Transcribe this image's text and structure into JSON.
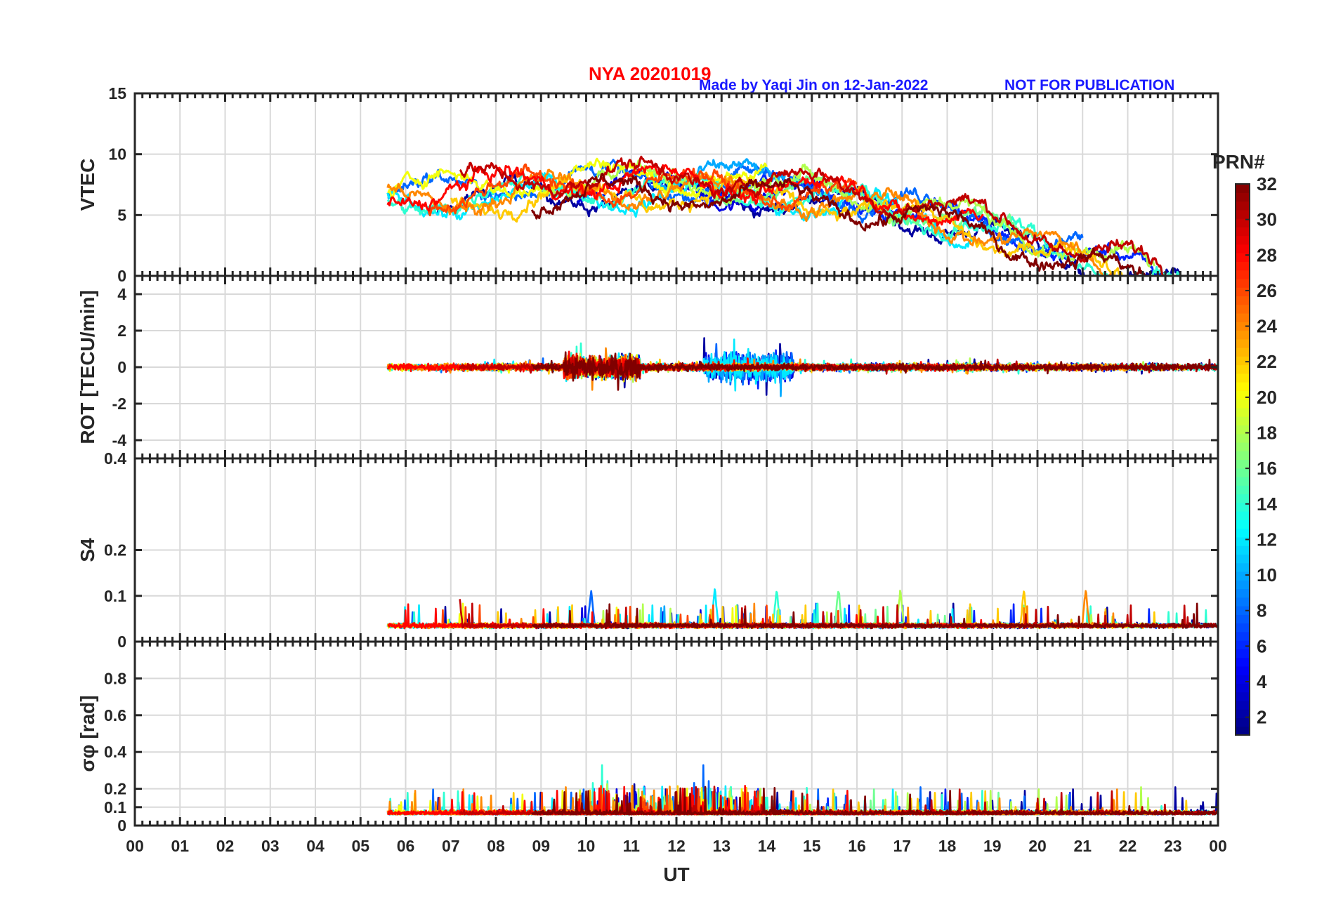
{
  "header": {
    "title": "NYA   20201019",
    "credit": "Made by Yaqi Jin on 12-Jan-2022",
    "notice": "NOT FOR PUBLICATION"
  },
  "chart_data": {
    "type": "line",
    "title": "NYA   20201019",
    "xlabel": "UT",
    "x_ticks": [
      "00",
      "01",
      "02",
      "03",
      "04",
      "05",
      "06",
      "07",
      "08",
      "09",
      "10",
      "11",
      "12",
      "13",
      "14",
      "15",
      "16",
      "17",
      "18",
      "19",
      "20",
      "21",
      "22",
      "23",
      "00"
    ],
    "xlim": [
      0,
      24
    ],
    "panels": [
      {
        "name": "vtec",
        "ylabel": "VTEC",
        "ylim": [
          0,
          15
        ],
        "yticks": [
          0,
          5,
          10,
          15
        ],
        "ytick_labels": [
          "0",
          "5",
          "10",
          "15"
        ],
        "baseline": 6.5,
        "shape": "vtec"
      },
      {
        "name": "rot",
        "ylabel": "ROT [TECU/min]",
        "ylim": [
          -5,
          5
        ],
        "yticks": [
          -4,
          -2,
          0,
          2,
          4
        ],
        "ytick_labels": [
          "-4",
          "-2",
          "0",
          "2",
          "4"
        ],
        "baseline": 0,
        "shape": "rot"
      },
      {
        "name": "s4",
        "ylabel": "S4",
        "ylim": [
          0,
          0.4
        ],
        "yticks": [
          0,
          0.1,
          0.2,
          0.4
        ],
        "ytick_labels": [
          "0",
          "0.1",
          "0.2",
          "0.4"
        ],
        "baseline": 0.035,
        "shape": "s4"
      },
      {
        "name": "sigma_phi",
        "ylabel": "σφ [rad]",
        "ylim": [
          0,
          1
        ],
        "yticks": [
          0,
          0.1,
          0.2,
          0.4,
          0.6,
          0.8
        ],
        "ytick_labels": [
          "0",
          "0.1",
          "0.2",
          "0.4",
          "0.6",
          "0.8"
        ],
        "baseline": 0.06,
        "shape": "sigma"
      }
    ],
    "colorbar": {
      "label": "PRN#",
      "range": [
        1,
        32
      ],
      "ticks": [
        2,
        4,
        6,
        8,
        10,
        12,
        14,
        16,
        18,
        20,
        22,
        24,
        26,
        28,
        30,
        32
      ],
      "tick_labels": [
        "2",
        "4",
        "6",
        "8",
        "10",
        "12",
        "14",
        "16",
        "18",
        "20",
        "22",
        "24",
        "26",
        "28",
        "30",
        "32"
      ]
    },
    "series": [
      {
        "name": "PRN 2",
        "prn": 2,
        "start": 6.7,
        "end": 24.0
      },
      {
        "name": "PRN 4",
        "prn": 4,
        "start": 9.8,
        "end": 15.2
      },
      {
        "name": "PRN 6",
        "prn": 6,
        "start": 12.5,
        "end": 23.0
      },
      {
        "name": "PRN 8",
        "prn": 8,
        "start": 5.6,
        "end": 21.0
      },
      {
        "name": "PRN 10",
        "prn": 10,
        "start": 11.6,
        "end": 14.4
      },
      {
        "name": "PRN 12",
        "prn": 12,
        "start": 5.6,
        "end": 18.6
      },
      {
        "name": "PRN 14",
        "prn": 14,
        "start": 5.6,
        "end": 24.0
      },
      {
        "name": "PRN 16",
        "prn": 16,
        "start": 12.8,
        "end": 19.9
      },
      {
        "name": "PRN 18",
        "prn": 18,
        "start": 9.0,
        "end": 22.6
      },
      {
        "name": "PRN 20",
        "prn": 20,
        "start": 5.6,
        "end": 14.0
      },
      {
        "name": "PRN 22",
        "prn": 22,
        "start": 7.0,
        "end": 23.4
      },
      {
        "name": "PRN 24",
        "prn": 24,
        "start": 5.6,
        "end": 22.0
      },
      {
        "name": "PRN 26",
        "prn": 26,
        "start": 6.5,
        "end": 16.0
      },
      {
        "name": "PRN 28",
        "prn": 28,
        "start": 5.6,
        "end": 18.8
      },
      {
        "name": "PRN 30",
        "prn": 30,
        "start": 7.2,
        "end": 24.0
      },
      {
        "name": "PRN 32",
        "prn": 32,
        "start": 8.8,
        "end": 24.0
      }
    ]
  }
}
